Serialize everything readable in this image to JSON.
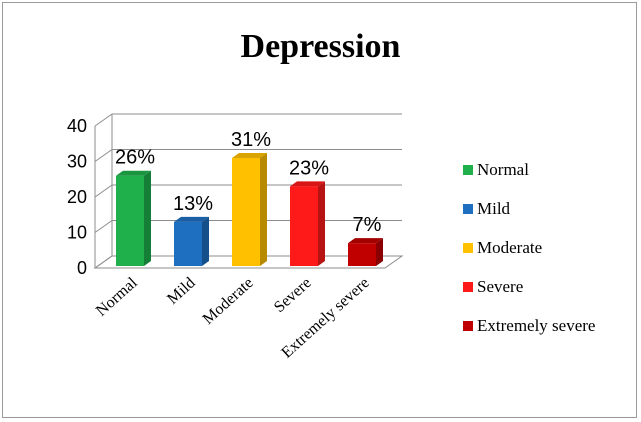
{
  "chart_data": {
    "type": "bar",
    "title": "Depression",
    "categories": [
      "Normal",
      "Mild",
      "Moderate",
      "Severe",
      "Extremely severe"
    ],
    "values": [
      26,
      13,
      31,
      23,
      7
    ],
    "data_labels": [
      "26%",
      "13%",
      "31%",
      "23%",
      "7%"
    ],
    "yticks": [
      "0",
      "10",
      "20",
      "30",
      "40"
    ],
    "ylim": [
      0,
      40
    ],
    "grid": true,
    "legend_position": "right",
    "colors": [
      "#1fb04c",
      "#1f6fc0",
      "#ffc000",
      "#ff1a1a",
      "#c00000"
    ],
    "legend": [
      {
        "label": "Normal",
        "color": "#1fb04c"
      },
      {
        "label": "Mild",
        "color": "#1f6fc0"
      },
      {
        "label": "Moderate",
        "color": "#ffc000"
      },
      {
        "label": "Severe",
        "color": "#ff1a1a"
      },
      {
        "label": "Extremely severe",
        "color": "#c00000"
      }
    ]
  }
}
